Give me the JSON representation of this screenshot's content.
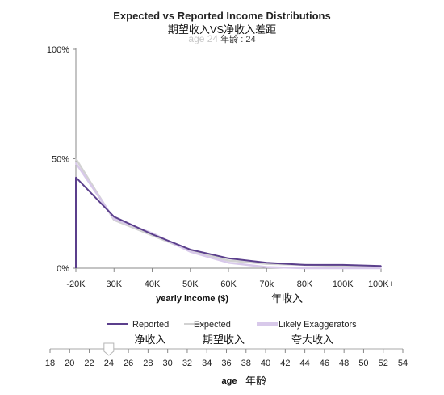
{
  "chart_data": {
    "type": "line",
    "title": "Expected vs Reported Income Distributions",
    "subtitle": "期望收入VS净收入差距",
    "age_display": {
      "ghost": "age 24",
      "label": "年龄 : 24"
    },
    "xlabel": "yearly income ($)",
    "xlabel_cn": "年收入",
    "categories": [
      "-20K",
      "30K",
      "40K",
      "50K",
      "60K",
      "70k",
      "80K",
      "100K",
      "100K+"
    ],
    "y_ticks": [
      "0%",
      "50%",
      "100%"
    ],
    "ylim": [
      0,
      100
    ],
    "series": [
      {
        "name": "Reported",
        "name_cn": "净收入",
        "color": "#5b3f8c",
        "values": [
          41.5,
          23.5,
          15.5,
          8.5,
          4.5,
          2.5,
          1.5,
          1.5,
          1.0
        ]
      },
      {
        "name": "Expected",
        "name_cn": "期望收入",
        "color": "#d2d2d2",
        "values": [
          50.0,
          22.0,
          15.0,
          8.0,
          3.5,
          2.0,
          1.5,
          1.0,
          0.7
        ]
      },
      {
        "name": "Likely Exaggerators",
        "name_cn": "夸大收入",
        "color": "#d8c9ea",
        "values": [
          48.0,
          22.5,
          16.0,
          7.5,
          2.5,
          0.5,
          0.0,
          0.0,
          0.0
        ]
      }
    ],
    "grid": false,
    "legend_position": "bottom"
  },
  "slider": {
    "label": "age",
    "label_cn": "年龄",
    "ticks": [
      "18",
      "20",
      "22",
      "24",
      "26",
      "28",
      "30",
      "32",
      "34",
      "36",
      "38",
      "40",
      "42",
      "44",
      "46",
      "48",
      "50",
      "52",
      "54"
    ],
    "min": 18,
    "max": 54,
    "value": 24
  }
}
